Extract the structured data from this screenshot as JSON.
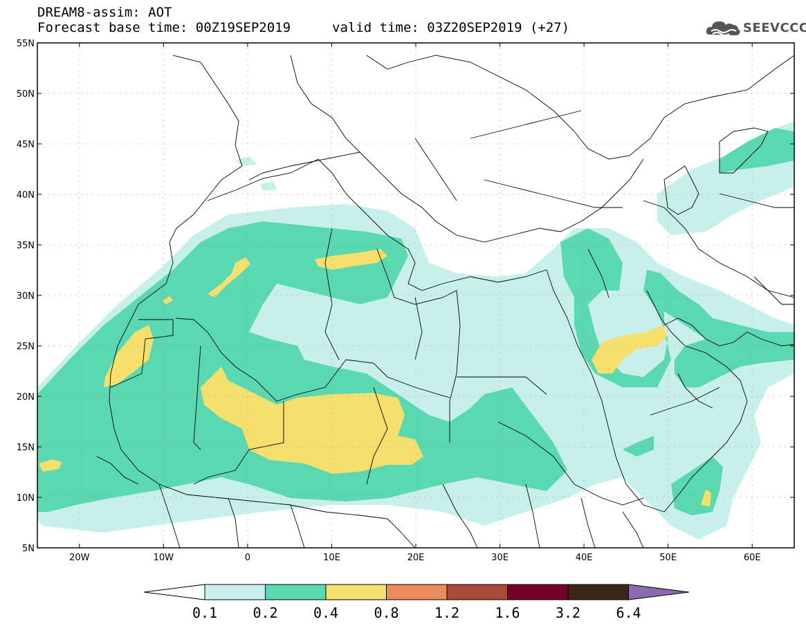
{
  "header": {
    "title_line1": "DREAM8-assim: AOT",
    "title_line2": "Forecast base time: 00Z19SEP2019",
    "valid_time": "valid time: 03Z20SEP2019 (+27)"
  },
  "logo": {
    "text": "SEEVCCC",
    "icon": "cloud-icon"
  },
  "map": {
    "lat_labels": [
      "55N",
      "50N",
      "45N",
      "40N",
      "35N",
      "30N",
      "25N",
      "20N",
      "15N",
      "10N",
      "5N"
    ],
    "lon_labels": [
      "20W",
      "10W",
      "0",
      "10E",
      "20E",
      "30E",
      "40E",
      "50E",
      "60E"
    ],
    "lon_range": [
      -25,
      65
    ],
    "lat_range": [
      5,
      55
    ]
  },
  "colorbar": {
    "labels": [
      "0.1",
      "0.2",
      "0.4",
      "0.8",
      "1.2",
      "1.6",
      "3.2",
      "6.4"
    ],
    "colors": [
      "#ffffff",
      "#c8f0eb",
      "#5ad9b0",
      "#f5e06e",
      "#e98b5c",
      "#aa4a38",
      "#770025",
      "#3a2516",
      "#8b6bad"
    ]
  }
}
